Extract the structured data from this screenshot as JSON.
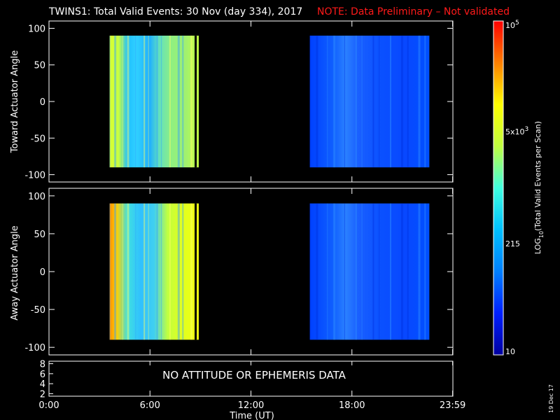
{
  "title": "TWINS1: Total Valid Events: 30 Nov (day 334), 2017",
  "note": "NOTE: Data Preliminary – Not validated",
  "chart_data": [
    {
      "type": "heatmap",
      "ylabel": "Toward Actuator Angle",
      "ylim": [
        -110,
        110
      ],
      "yticks": [
        100,
        50,
        0,
        -50,
        -100
      ],
      "xlim": [
        0,
        24
      ],
      "data_blocks": [
        {
          "x_start_hours": 3.6,
          "x_end_hours": 8.9,
          "y_range": [
            -90,
            90
          ],
          "level": "yellow-green / light blue"
        },
        {
          "x_start_hours": 15.5,
          "x_end_hours": 22.6,
          "y_range": [
            -90,
            90
          ],
          "level": "blue"
        }
      ]
    },
    {
      "type": "heatmap",
      "ylabel": "Away Actuator Angle",
      "ylim": [
        -110,
        110
      ],
      "yticks": [
        100,
        50,
        0,
        -50,
        -100
      ],
      "xlim": [
        0,
        24
      ],
      "data_blocks": [
        {
          "x_start_hours": 3.6,
          "x_end_hours": 8.9,
          "y_range": [
            -90,
            90
          ],
          "level": "orange-yellow / light blue"
        },
        {
          "x_start_hours": 15.5,
          "x_end_hours": 22.6,
          "y_range": [
            -90,
            90
          ],
          "level": "blue"
        }
      ]
    },
    {
      "type": "line",
      "yticks": [
        8,
        6,
        4,
        2
      ],
      "message": "NO ATTITUDE OR EPHEMERIS DATA",
      "xticks": [
        "0:00",
        "6:00",
        "12:00",
        "18:00",
        "23:59"
      ],
      "xlabel": "Time (UT)"
    }
  ],
  "colorbar": {
    "label_log": "LOG",
    "label_sub": "10",
    "label_rest": "(Total Valid Events per Scan)",
    "tick_top_base": "10",
    "tick_top_exp": "5",
    "tick_mid_mant": "5x10",
    "tick_mid_exp": "3",
    "tick_low": "215",
    "tick_bottom": "10",
    "colors": [
      "#0000a0",
      "#0020ff",
      "#0080ff",
      "#00c0ff",
      "#40ffe0",
      "#c0ff40",
      "#ffff00",
      "#ff8000",
      "#ff0000"
    ]
  },
  "stamp": "19 Dec 17"
}
